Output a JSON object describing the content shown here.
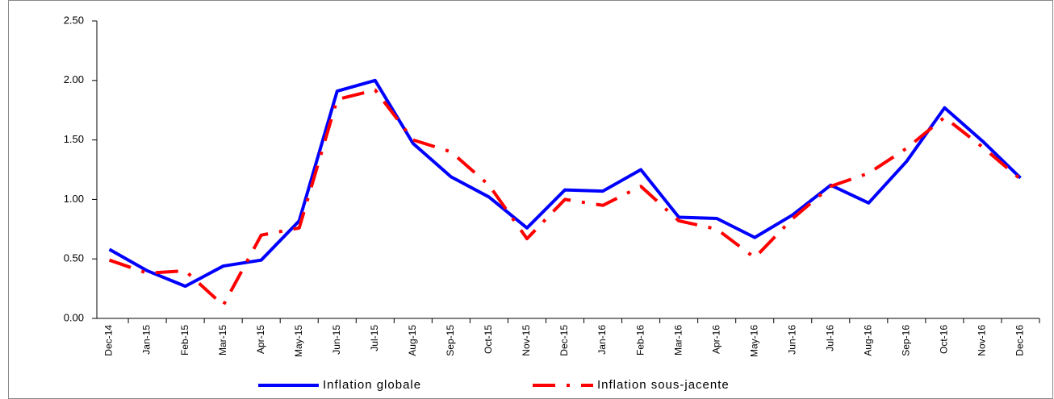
{
  "chart_data": {
    "type": "line",
    "categories": [
      "Dec-14",
      "Jan-15",
      "Feb-15",
      "Mar-15",
      "Apr-15",
      "May-15",
      "Jun-15",
      "Jul-15",
      "Aug-15",
      "Sep-15",
      "Oct-15",
      "Nov-15",
      "Dec-15",
      "Jan-16",
      "Feb-16",
      "Mar-16",
      "Apr-16",
      "May-16",
      "Jun-16",
      "Jul-16",
      "Aug-16",
      "Sep-16",
      "Oct-16",
      "Nov-16",
      "Dec-16"
    ],
    "series": [
      {
        "name": "Inflation globale",
        "color": "#0000ff",
        "dash": "solid",
        "values": [
          0.58,
          0.4,
          0.27,
          0.44,
          0.49,
          0.82,
          1.91,
          2.0,
          1.47,
          1.19,
          1.02,
          0.76,
          1.08,
          1.07,
          1.25,
          0.85,
          0.84,
          0.68,
          0.87,
          1.12,
          0.97,
          1.32,
          1.77,
          1.49,
          1.18
        ]
      },
      {
        "name": "Inflation sous-jacente",
        "color": "#ff0000",
        "dash": "dashdot",
        "values": [
          0.49,
          0.38,
          0.4,
          0.11,
          0.7,
          0.76,
          1.84,
          1.92,
          1.5,
          1.4,
          1.12,
          0.67,
          1.0,
          0.95,
          1.11,
          0.82,
          0.75,
          0.51,
          0.84,
          1.11,
          1.22,
          1.43,
          1.69,
          1.44,
          1.17
        ]
      }
    ],
    "ylim": [
      0,
      2.5
    ],
    "yticks": [
      {
        "value": 0,
        "label": "0.00"
      },
      {
        "value": 0.5,
        "label": "0.50"
      },
      {
        "value": 1,
        "label": "1.00"
      },
      {
        "value": 1.5,
        "label": "1.50"
      },
      {
        "value": 2,
        "label": "2.00"
      },
      {
        "value": 2.5,
        "label": "2.50"
      }
    ],
    "grid": false,
    "legend": "bottom"
  }
}
